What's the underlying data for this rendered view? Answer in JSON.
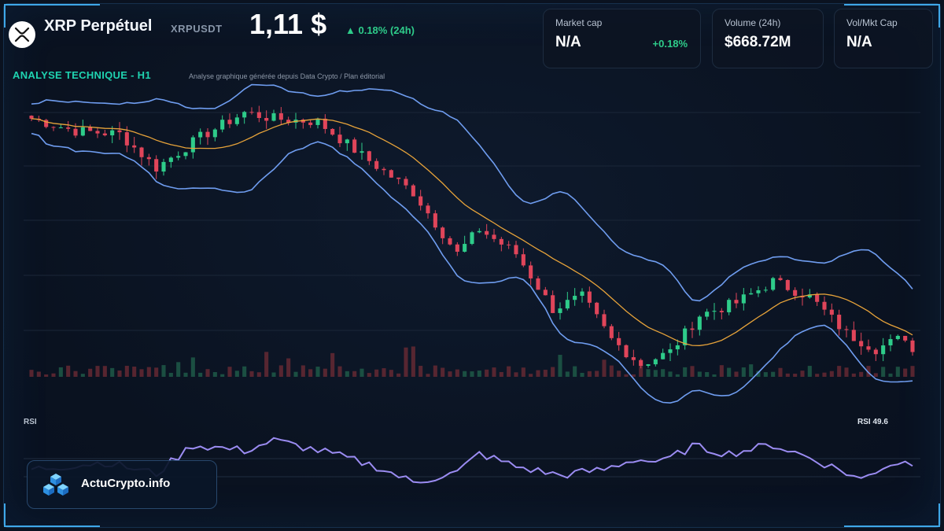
{
  "header": {
    "title": "XRP Perpétuel",
    "ticker": "XRPUSDT",
    "price": "1,11 $",
    "change": "▲ 0.18% (24h)",
    "logo_icon": "xrp-logo-icon"
  },
  "cards": [
    {
      "label": "Market cap",
      "value": "N/A",
      "change": "+0.18%"
    },
    {
      "label": "Volume (24h)",
      "value": "$668.72M"
    },
    {
      "label": "Vol/Mkt Cap",
      "value": "N/A"
    }
  ],
  "analysis": {
    "title": "ANALYSE TECHNIQUE - H1",
    "subtitle": "Analyse graphique générée depuis Data Crypto / Plan éditorial"
  },
  "rsi": {
    "label": "RSI",
    "value_text": "RSI 49.6"
  },
  "brand": {
    "name": "ActuCrypto.info",
    "icon": "cubes-logo-icon"
  },
  "colors": {
    "up": "#2ecc8a",
    "down": "#e0455a",
    "bollinger": "#6f9df0",
    "moving_average": "#e7a33a",
    "rsi": "#9b8cf2",
    "accent": "#1fd3b0"
  },
  "chart_data": [
    {
      "type": "candlestick",
      "title": "ANALYSE TECHNIQUE - H1",
      "indicators": [
        "Bollinger bands",
        "moving average",
        "volume"
      ],
      "grid": true,
      "close_path_keypoints": [
        {
          "t": 0,
          "close": 1.49
        },
        {
          "t": 6,
          "close": 1.47
        },
        {
          "t": 12,
          "close": 1.465
        },
        {
          "t": 17,
          "close": 1.41
        },
        {
          "t": 23,
          "close": 1.46
        },
        {
          "t": 29,
          "close": 1.5
        },
        {
          "t": 33,
          "close": 1.49
        },
        {
          "t": 39,
          "close": 1.485
        },
        {
          "t": 45,
          "close": 1.43
        },
        {
          "t": 52,
          "close": 1.37
        },
        {
          "t": 58,
          "close": 1.27
        },
        {
          "t": 61,
          "close": 1.31
        },
        {
          "t": 66,
          "close": 1.27
        },
        {
          "t": 71,
          "close": 1.18
        },
        {
          "t": 75,
          "close": 1.2
        },
        {
          "t": 79,
          "close": 1.13
        },
        {
          "t": 83,
          "close": 1.09
        },
        {
          "t": 87,
          "close": 1.11
        },
        {
          "t": 91,
          "close": 1.17
        },
        {
          "t": 96,
          "close": 1.19
        },
        {
          "t": 101,
          "close": 1.225
        },
        {
          "t": 106,
          "close": 1.2
        },
        {
          "t": 111,
          "close": 1.14
        },
        {
          "t": 115,
          "close": 1.115
        },
        {
          "t": 119,
          "close": 1.135
        },
        {
          "t": 120,
          "close": 1.11
        }
      ]
    },
    {
      "type": "line",
      "title": "RSI",
      "series": [
        {
          "name": "RSI",
          "last": 49.6
        }
      ],
      "keypoints": [
        {
          "t": 0,
          "v": 45
        },
        {
          "t": 10,
          "v": 50
        },
        {
          "t": 17,
          "v": 42
        },
        {
          "t": 22,
          "v": 62
        },
        {
          "t": 29,
          "v": 58
        },
        {
          "t": 33,
          "v": 65
        },
        {
          "t": 40,
          "v": 57
        },
        {
          "t": 47,
          "v": 47
        },
        {
          "t": 52,
          "v": 36
        },
        {
          "t": 58,
          "v": 43
        },
        {
          "t": 61,
          "v": 56
        },
        {
          "t": 66,
          "v": 47
        },
        {
          "t": 72,
          "v": 41
        },
        {
          "t": 78,
          "v": 45
        },
        {
          "t": 82,
          "v": 52
        },
        {
          "t": 86,
          "v": 50
        },
        {
          "t": 90,
          "v": 61
        },
        {
          "t": 95,
          "v": 56
        },
        {
          "t": 101,
          "v": 62
        },
        {
          "t": 105,
          "v": 55
        },
        {
          "t": 110,
          "v": 45
        },
        {
          "t": 113,
          "v": 38
        },
        {
          "t": 116,
          "v": 47
        },
        {
          "t": 118,
          "v": 50
        },
        {
          "t": 120,
          "v": 49.6
        }
      ]
    }
  ]
}
